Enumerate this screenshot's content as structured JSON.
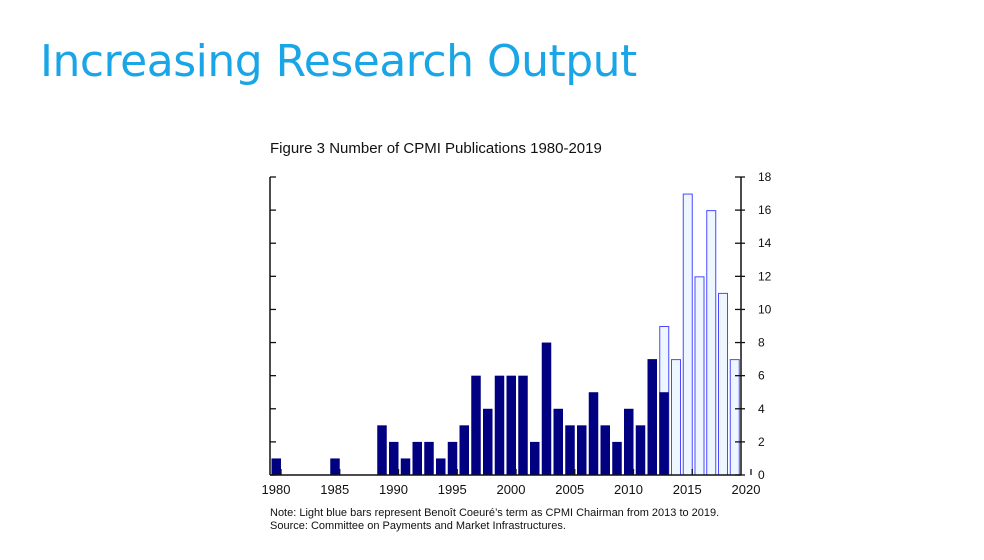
{
  "slide": {
    "title": "Increasing Research Output"
  },
  "chart_data": {
    "type": "bar",
    "title": "Figure 3  Number of CPMI Publications 1980-2019",
    "xlabel": "",
    "ylabel": "",
    "xlim": [
      1980,
      2020
    ],
    "ylim": [
      0,
      18
    ],
    "x_ticks": [
      1980,
      1985,
      1990,
      1995,
      2000,
      2005,
      2010,
      2015,
      2020
    ],
    "y_ticks": [
      0,
      2,
      4,
      6,
      8,
      10,
      12,
      14,
      16,
      18
    ],
    "y_axis_labels_side": "right",
    "grid": false,
    "series": [
      {
        "style": "dark-filled",
        "color": "#000080",
        "years": [
          1980,
          1985,
          1989,
          1990,
          1991,
          1992,
          1993,
          1994,
          1995,
          1996,
          1997,
          1998,
          1999,
          2000,
          2001,
          2002,
          2003,
          2004,
          2005,
          2006,
          2007,
          2008,
          2009,
          2010,
          2011,
          2012,
          2013
        ],
        "values": [
          1,
          1,
          3,
          2,
          1,
          2,
          2,
          1,
          2,
          3,
          6,
          4,
          6,
          6,
          6,
          2,
          8,
          4,
          3,
          3,
          5,
          3,
          2,
          4,
          3,
          7,
          5
        ]
      },
      {
        "style": "light-blue-outlined",
        "color": "#4a4aff",
        "fill": "#eef6ff",
        "years": [
          2013,
          2014,
          2015,
          2016,
          2017,
          2018,
          2019
        ],
        "values": [
          9,
          7,
          17,
          12,
          16,
          11,
          7
        ]
      }
    ],
    "notes": [
      "Note: Light blue bars represent Benoît Coeuré’s term as CPMI Chairman from 2013 to 2019.",
      "Source: Committee on Payments and Market Infrastructures."
    ]
  }
}
